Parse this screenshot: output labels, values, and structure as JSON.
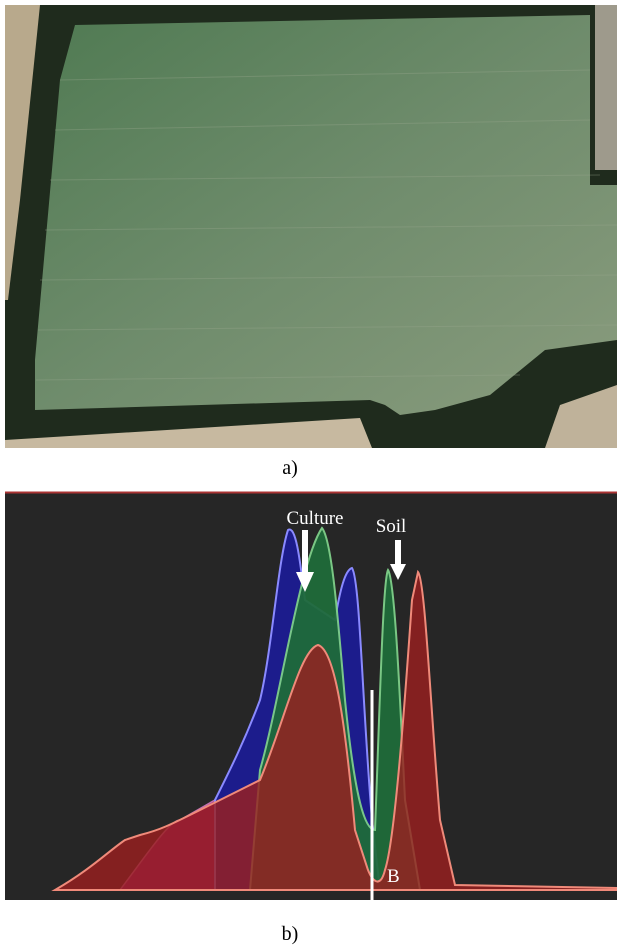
{
  "figure": {
    "panel_a": {
      "label": "a)"
    },
    "panel_b": {
      "label": "b)",
      "annotations": {
        "culture": "Culture",
        "soil": "Soil",
        "b": "B"
      }
    }
  }
}
